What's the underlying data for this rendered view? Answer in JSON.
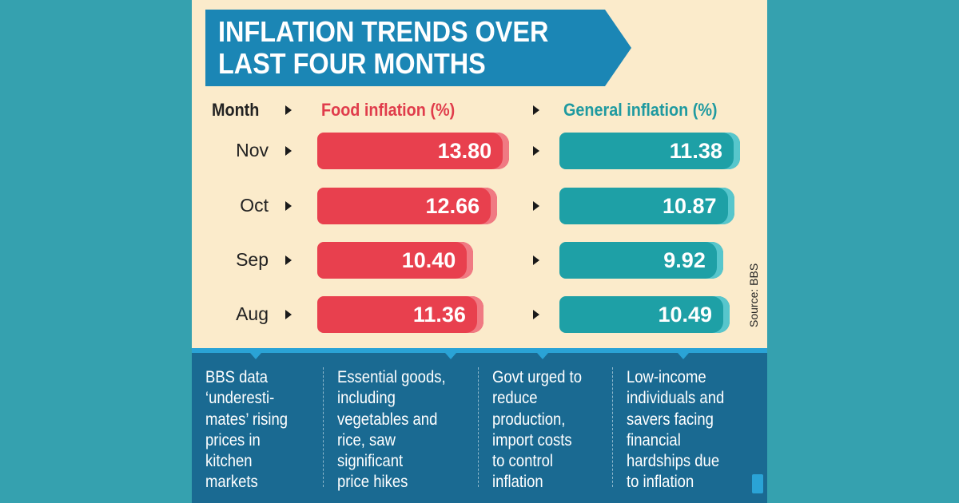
{
  "chart_data": {
    "type": "bar",
    "title": "INFLATION TRENDS OVER\nLAST FOUR MONTHS",
    "column_headers": {
      "month": "Month",
      "food": "Food inflation (%)",
      "general": "General inflation (%)"
    },
    "categories": [
      "Nov",
      "Oct",
      "Sep",
      "Aug"
    ],
    "series": [
      {
        "name": "Food inflation (%)",
        "values": [
          13.8,
          12.66,
          10.4,
          11.36
        ],
        "labels": [
          "13.80",
          "12.66",
          "10.40",
          "11.36"
        ],
        "color": "#e8404e"
      },
      {
        "name": "General inflation (%)",
        "values": [
          11.38,
          10.87,
          9.92,
          10.49
        ],
        "labels": [
          "11.38",
          "10.87",
          "9.92",
          "10.49"
        ],
        "color": "#1ea0a6"
      }
    ],
    "source": "Source: BBS"
  },
  "notes": [
    "BBS data\n‘underesti-\nmates’ rising\nprices in\nkitchen\nmarkets",
    "Essential goods,\nincluding\nvegetables and\nrice, saw\nsignificant\nprice hikes",
    "Govt urged to\nreduce\nproduction,\nimport costs\nto control\ninflation",
    "Low-income\nindividuals and\nsavers facing\nfinancial\nhardships due\nto inflation"
  ],
  "colors": {
    "banner": "#1b86b5",
    "food": "#e8404e",
    "general": "#1ea0a6",
    "panel": "#fbebcb",
    "bottom": "#1a6a92"
  }
}
